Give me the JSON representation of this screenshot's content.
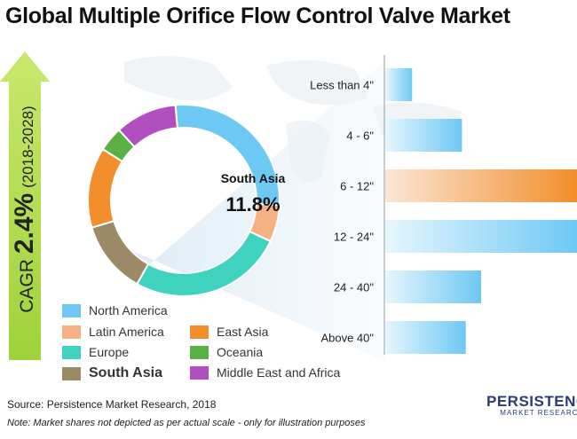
{
  "title": "Global Multiple Orifice Flow Control Valve Market",
  "cagr": {
    "prefix": "CAGR",
    "value": "2.4%",
    "period": "(2018-2028)"
  },
  "chart_data": [
    {
      "type": "pie",
      "style": "donut",
      "segments": [
        {
          "name": "North America",
          "value": 26,
          "color": "#6ec8f4"
        },
        {
          "name": "Latin America",
          "value": 6,
          "color": "#f4b183"
        },
        {
          "name": "Europe",
          "value": 25,
          "color": "#3fd3bf"
        },
        {
          "name": "South Asia",
          "value": 11.8,
          "color": "#9c8a67"
        },
        {
          "name": "East Asia",
          "value": 13,
          "color": "#f28e2b"
        },
        {
          "name": "Oceania",
          "value": 4,
          "color": "#59b045"
        },
        {
          "name": "Middle East and Africa",
          "value": 10,
          "color": "#b14fc1"
        }
      ],
      "highlight": {
        "name": "South Asia",
        "value_label": "11.8%"
      }
    },
    {
      "type": "bar",
      "orientation": "horizontal",
      "categories": [
        "Less than 4\"",
        "4 - 6\"",
        "6 - 12\"",
        "12 - 24\"",
        "24 - 40\"",
        "Above 40\""
      ],
      "values": [
        14,
        40,
        100,
        100,
        50,
        42
      ],
      "highlight": "6 - 12\"",
      "colors": {
        "normal": "#6ec8f4",
        "highlight": "#f28e2b"
      }
    }
  ],
  "legend": [
    {
      "label": "North America",
      "color": "#6ec8f4",
      "bold": false
    },
    {
      "label": "East Asia",
      "color": "#f28e2b",
      "bold": false
    },
    {
      "label": "Latin America",
      "color": "#f4b183",
      "bold": false
    },
    {
      "label": "Oceania",
      "color": "#59b045",
      "bold": false
    },
    {
      "label": "Europe",
      "color": "#3fd3bf",
      "bold": false
    },
    {
      "label": "Middle East and Africa",
      "color": "#b14fc1",
      "bold": false
    },
    {
      "label": "South Asia",
      "color": "#9c8a67",
      "bold": true
    }
  ],
  "source": "Source: Persistence Market Research, 2018",
  "note": "Note:  Market shares not depicted as per actual scale - only for illustration purposes",
  "logo": {
    "line1": "PERSISTENCE",
    "line2": "MARKET RESEARCH"
  }
}
